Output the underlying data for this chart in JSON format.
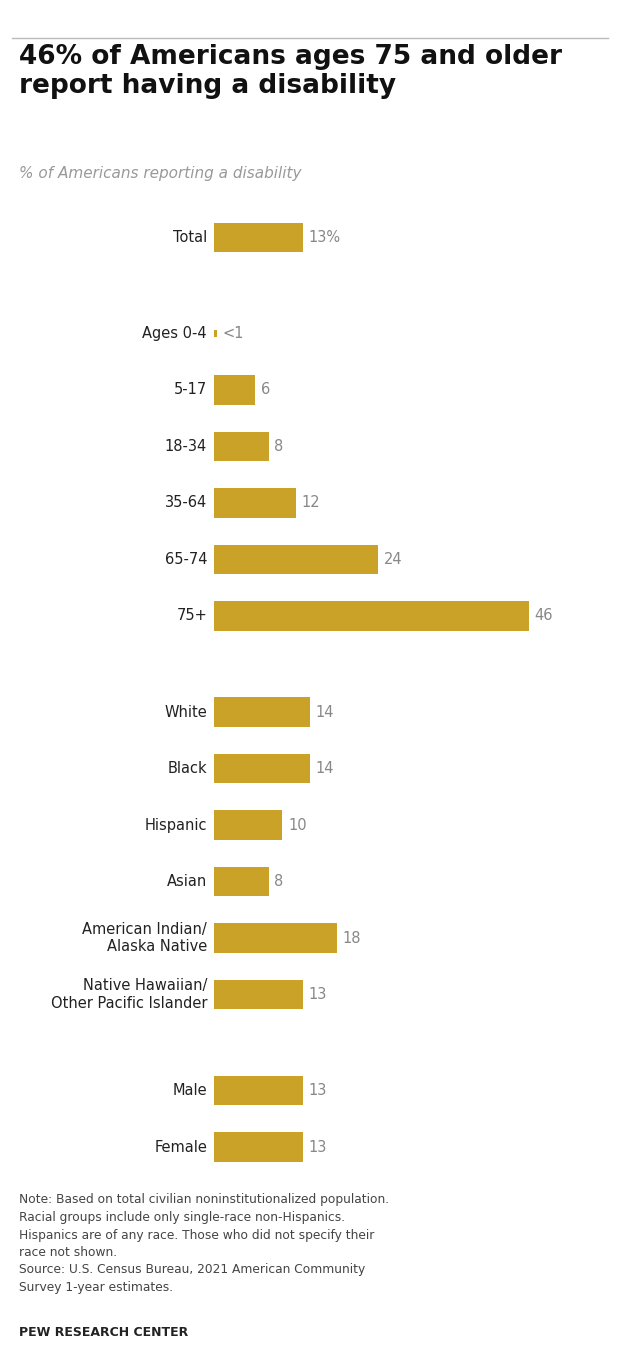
{
  "title": "46% of Americans ages 75 and older\nreport having a disability",
  "subtitle": "% of Americans reporting a disability",
  "bar_color": "#C9A227",
  "label_color": "#888888",
  "text_color": "#222222",
  "categories": [
    "Total",
    "Ages 0-4",
    "5-17",
    "18-34",
    "35-64",
    "65-74",
    "75+",
    "White",
    "Black",
    "Hispanic",
    "Asian",
    "American Indian/\nAlaska Native",
    "Native Hawaiian/\nOther Pacific Islander",
    "Male",
    "Female"
  ],
  "values": [
    13,
    0.4,
    6,
    8,
    12,
    24,
    46,
    14,
    14,
    10,
    8,
    18,
    13,
    13,
    13
  ],
  "labels": [
    "13%",
    "<1",
    "6",
    "8",
    "12",
    "24",
    "46",
    "14",
    "14",
    "10",
    "8",
    "18",
    "13",
    "13",
    "13"
  ],
  "note": "Note: Based on total civilian noninstitutionalized population.\nRacial groups include only single-race non-Hispanics.\nHispanics are of any race. Those who did not specify their\nrace not shown.\nSource: U.S. Census Bureau, 2021 American Community\nSurvey 1-year estimates.",
  "footer": "PEW RESEARCH CENTER",
  "xlim": [
    0,
    52
  ],
  "background_color": "#ffffff",
  "group_gaps": {
    "1": 0.7,
    "7": 0.7,
    "13": 0.7
  }
}
